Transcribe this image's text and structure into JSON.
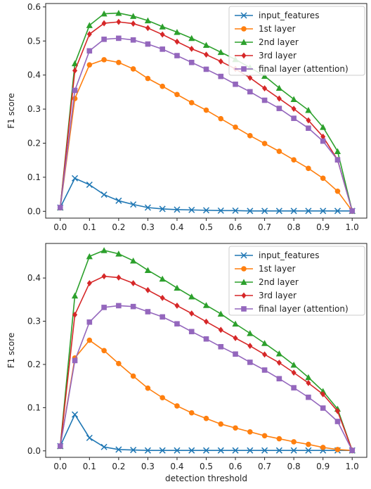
{
  "colors": {
    "input_features": "#1f77b4",
    "1st": "#ff7f0e",
    "2nd": "#2ca02c",
    "3rd": "#d62728",
    "final": "#9467bd"
  },
  "chart_data": [
    {
      "type": "line",
      "xlabel": "",
      "ylabel": "F1 score",
      "xlim": [
        -0.05,
        1.05
      ],
      "ylim": [
        -0.02,
        0.61
      ],
      "xticks": [
        "0.0",
        "0.1",
        "0.2",
        "0.3",
        "0.4",
        "0.5",
        "0.6",
        "0.7",
        "0.8",
        "0.9",
        "1.0"
      ],
      "yticks": [
        "0.0",
        "0.1",
        "0.2",
        "0.3",
        "0.4",
        "0.5",
        "0.6"
      ],
      "legend_position": "top-right",
      "x": [
        0.0,
        0.05,
        0.1,
        0.15,
        0.2,
        0.25,
        0.3,
        0.35,
        0.4,
        0.45,
        0.5,
        0.55,
        0.6,
        0.65,
        0.7,
        0.75,
        0.8,
        0.85,
        0.9,
        0.95,
        1.0
      ],
      "series": [
        {
          "name": "input_features",
          "marker": "x",
          "color_key": "input_features",
          "values": [
            0.011,
            0.097,
            0.078,
            0.049,
            0.031,
            0.02,
            0.011,
            0.007,
            0.005,
            0.004,
            0.003,
            0.002,
            0.002,
            0.001,
            0.001,
            0.001,
            0.001,
            0.001,
            0.001,
            0.001,
            0.001
          ]
        },
        {
          "name": "1st layer",
          "marker": "circle",
          "color_key": "1st",
          "values": [
            0.011,
            0.331,
            0.43,
            0.445,
            0.437,
            0.418,
            0.39,
            0.367,
            0.343,
            0.319,
            0.297,
            0.272,
            0.247,
            0.222,
            0.199,
            0.176,
            0.151,
            0.126,
            0.097,
            0.059,
            0.001
          ]
        },
        {
          "name": "2nd layer",
          "marker": "triangle",
          "color_key": "2nd",
          "values": [
            0.011,
            0.434,
            0.546,
            0.58,
            0.582,
            0.573,
            0.56,
            0.542,
            0.526,
            0.508,
            0.488,
            0.467,
            0.446,
            0.422,
            0.397,
            0.362,
            0.329,
            0.297,
            0.247,
            0.176,
            0.001
          ]
        },
        {
          "name": "3rd layer",
          "marker": "diamond",
          "color_key": "3rd",
          "values": [
            0.011,
            0.413,
            0.52,
            0.552,
            0.556,
            0.551,
            0.538,
            0.519,
            0.498,
            0.477,
            0.46,
            0.44,
            0.418,
            0.392,
            0.361,
            0.331,
            0.301,
            0.267,
            0.219,
            0.151,
            0.001
          ]
        },
        {
          "name": "final layer (attention)",
          "marker": "square",
          "color_key": "final",
          "values": [
            0.011,
            0.355,
            0.471,
            0.505,
            0.508,
            0.503,
            0.491,
            0.476,
            0.457,
            0.437,
            0.417,
            0.396,
            0.373,
            0.351,
            0.326,
            0.302,
            0.273,
            0.244,
            0.206,
            0.151,
            0.001
          ]
        }
      ]
    },
    {
      "type": "line",
      "xlabel": "detection threshold",
      "ylabel": "F1 score",
      "xlim": [
        -0.05,
        1.05
      ],
      "ylim": [
        -0.015,
        0.48
      ],
      "xticks": [
        "0.0",
        "0.1",
        "0.2",
        "0.3",
        "0.4",
        "0.5",
        "0.6",
        "0.7",
        "0.8",
        "0.9",
        "1.0"
      ],
      "yticks": [
        "0.0",
        "0.1",
        "0.2",
        "0.3",
        "0.4"
      ],
      "legend_position": "top-right",
      "x": [
        0.0,
        0.05,
        0.1,
        0.15,
        0.2,
        0.25,
        0.3,
        0.35,
        0.4,
        0.45,
        0.5,
        0.55,
        0.6,
        0.65,
        0.7,
        0.75,
        0.8,
        0.85,
        0.9,
        0.95,
        1.0
      ],
      "series": [
        {
          "name": "input_features",
          "marker": "x",
          "color_key": "input_features",
          "values": [
            0.011,
            0.084,
            0.03,
            0.009,
            0.003,
            0.002,
            0.001,
            0.001,
            0.001,
            0.001,
            0.001,
            0.001,
            0.001,
            0.001,
            0.001,
            0.001,
            0.001,
            0.001,
            0.001,
            0.001,
            0.001
          ]
        },
        {
          "name": "1st layer",
          "marker": "circle",
          "color_key": "1st",
          "values": [
            0.011,
            0.215,
            0.256,
            0.232,
            0.202,
            0.173,
            0.145,
            0.123,
            0.104,
            0.088,
            0.075,
            0.062,
            0.053,
            0.044,
            0.035,
            0.028,
            0.021,
            0.015,
            0.008,
            0.003,
            0.001
          ]
        },
        {
          "name": "2nd layer",
          "marker": "triangle",
          "color_key": "2nd",
          "values": [
            0.011,
            0.359,
            0.45,
            0.464,
            0.456,
            0.44,
            0.418,
            0.398,
            0.377,
            0.357,
            0.337,
            0.317,
            0.294,
            0.272,
            0.249,
            0.225,
            0.199,
            0.17,
            0.138,
            0.097,
            0.001
          ]
        },
        {
          "name": "3rd layer",
          "marker": "diamond",
          "color_key": "3rd",
          "values": [
            0.011,
            0.315,
            0.388,
            0.404,
            0.401,
            0.388,
            0.372,
            0.354,
            0.336,
            0.318,
            0.299,
            0.28,
            0.261,
            0.243,
            0.223,
            0.204,
            0.181,
            0.157,
            0.131,
            0.092,
            0.001
          ]
        },
        {
          "name": "final layer (attention)",
          "marker": "square",
          "color_key": "final",
          "values": [
            0.011,
            0.209,
            0.298,
            0.332,
            0.336,
            0.334,
            0.322,
            0.31,
            0.294,
            0.276,
            0.259,
            0.241,
            0.224,
            0.205,
            0.187,
            0.167,
            0.146,
            0.124,
            0.099,
            0.068,
            0.001
          ]
        }
      ]
    }
  ]
}
